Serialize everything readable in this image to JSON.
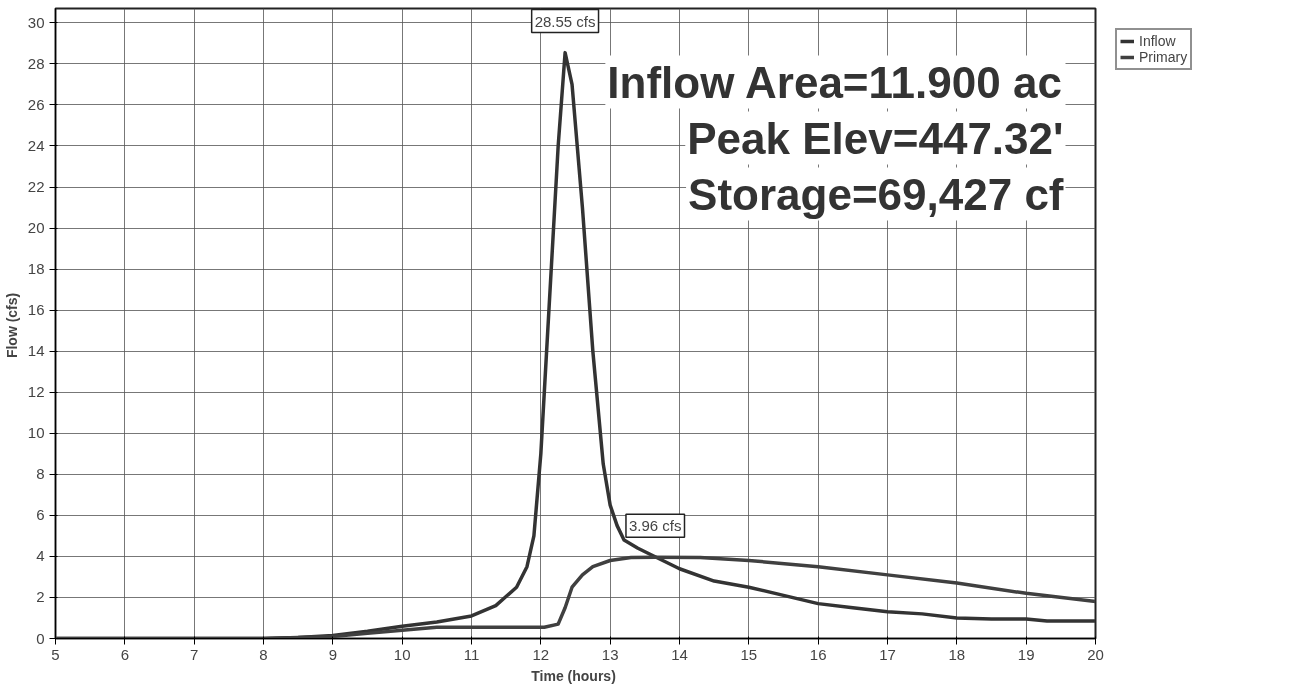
{
  "chart_data": {
    "type": "line",
    "xlabel": "Time  (hours)",
    "ylabel": "Flow  (cfs)",
    "xlim": [
      5,
      20
    ],
    "xticks": [
      5,
      6,
      7,
      8,
      9,
      10,
      11,
      12,
      13,
      14,
      15,
      16,
      17,
      18,
      19,
      20
    ],
    "ylim": [
      0,
      30.7
    ],
    "yticks": [
      0,
      2,
      4,
      6,
      8,
      10,
      12,
      14,
      16,
      18,
      20,
      22,
      24,
      26,
      28,
      30
    ],
    "grid": true,
    "legend": "top right",
    "marker": "none",
    "line_style": "solid",
    "series": [
      {
        "name": "Inflow",
        "color": "#333333",
        "x": [
          5,
          8,
          8.5,
          9,
          9.5,
          10,
          10.5,
          11,
          11.35,
          11.65,
          11.8,
          11.9,
          12.0,
          12.1,
          12.25,
          12.35,
          12.45,
          12.6,
          12.75,
          12.9,
          13.0,
          13.1,
          13.2,
          13.4,
          13.7,
          14,
          14.5,
          15,
          15.5,
          16,
          16.5,
          17,
          17.5,
          18,
          18.5,
          19,
          19.3,
          20
        ],
        "values": [
          0,
          0,
          0.05,
          0.15,
          0.35,
          0.6,
          0.8,
          1.1,
          1.6,
          2.5,
          3.5,
          5,
          9,
          15,
          24,
          28.55,
          27,
          21,
          14,
          8.5,
          6.5,
          5.5,
          4.8,
          4.4,
          3.9,
          3.4,
          2.8,
          2.5,
          2.1,
          1.7,
          1.5,
          1.3,
          1.2,
          1.0,
          0.95,
          0.95,
          0.85,
          0.85
        ]
      },
      {
        "name": "Primary",
        "color": "#404040",
        "x": [
          5,
          8,
          9,
          9.5,
          10,
          10.5,
          11,
          12.05,
          12.25,
          12.35,
          12.45,
          12.6,
          12.75,
          13,
          13.3,
          13.65,
          14.3,
          15,
          16,
          17,
          18,
          19,
          20
        ],
        "values": [
          0,
          0,
          0.1,
          0.25,
          0.4,
          0.55,
          0.55,
          0.55,
          0.7,
          1.5,
          2.5,
          3.1,
          3.5,
          3.8,
          3.95,
          3.96,
          3.95,
          3.8,
          3.5,
          3.1,
          2.7,
          2.2,
          1.8
        ]
      }
    ],
    "annotations": [
      {
        "text": "28.55 cfs",
        "x": 12.35,
        "y": 28.55
      },
      {
        "text": "3.96 cfs",
        "x": 13.65,
        "y": 3.96
      },
      "Inflow Area=11.900 ac",
      "Peak Elev=447.32'",
      "Storage=69,427 cf"
    ]
  }
}
